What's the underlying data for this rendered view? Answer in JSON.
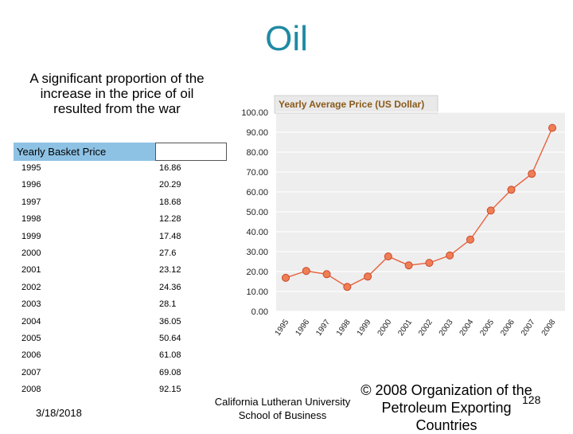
{
  "slide": {
    "title": "Oil",
    "subtitle": "A  significant proportion of the increase in the price of oil resulted from the war",
    "date": "3/18/2018",
    "footer_left": "California Lutheran University School of Business",
    "footer_right": "© 2008 Organization of the Petroleum Exporting Countries",
    "page_number": "128"
  },
  "table": {
    "header": "Yearly Basket Price",
    "rows": [
      {
        "year": "1995",
        "price": "16.86"
      },
      {
        "year": "1996",
        "price": "20.29"
      },
      {
        "year": "1997",
        "price": "18.68"
      },
      {
        "year": "1998",
        "price": "12.28"
      },
      {
        "year": "1999",
        "price": "17.48"
      },
      {
        "year": "2000",
        "price": "27.6"
      },
      {
        "year": "2001",
        "price": "23.12"
      },
      {
        "year": "2002",
        "price": "24.36"
      },
      {
        "year": "2003",
        "price": "28.1"
      },
      {
        "year": "2004",
        "price": "36.05"
      },
      {
        "year": "2005",
        "price": "50.64"
      },
      {
        "year": "2006",
        "price": "61.08"
      },
      {
        "year": "2007",
        "price": "69.08"
      },
      {
        "year": "2008",
        "price": "92.15"
      }
    ]
  },
  "chart_data": {
    "type": "line",
    "title": "Yearly Average Price (US Dollar)",
    "x": [
      "1995",
      "1996",
      "1997",
      "1998",
      "1999",
      "2000",
      "2001",
      "2002",
      "2003",
      "2004",
      "2005",
      "2006",
      "2007",
      "2008"
    ],
    "values": [
      16.86,
      20.29,
      18.68,
      12.28,
      17.48,
      27.6,
      23.12,
      24.36,
      28.1,
      36.05,
      50.64,
      61.08,
      69.08,
      92.15
    ],
    "yticks": [
      "100.00",
      "90.00",
      "80.00",
      "70.00",
      "60.00",
      "50.00",
      "40.00",
      "30.00",
      "20.00",
      "10.00",
      "0.00"
    ],
    "ylim": [
      0,
      100
    ],
    "xlabel": "",
    "ylabel": "",
    "grid": true,
    "colors": {
      "line": "#e8603c",
      "marker_fill": "#ef7e55",
      "marker_stroke": "#c9482a",
      "plot_bg": "#eeeeee",
      "grid": "#ffffff",
      "title_bg": "#e9e9e9",
      "title_text": "#8a5a1a"
    }
  }
}
